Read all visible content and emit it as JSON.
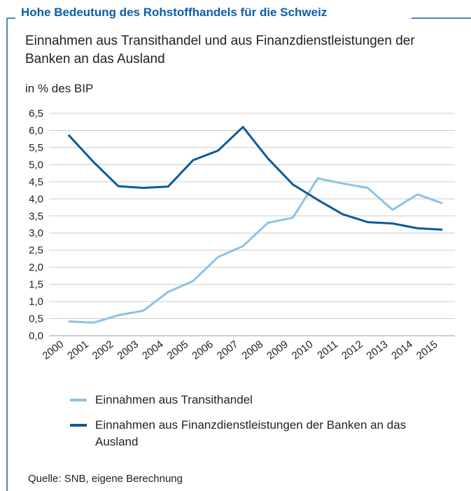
{
  "chart_data": {
    "type": "line",
    "title": "Hohe Bedeutung des Rohstoffhandels für die Schweiz",
    "subtitle": "Einnahmen aus Transithandel und aus Finanzdienstleistungen der Banken an das Ausland",
    "y_label": "in % des BIP",
    "source": "Quelle: SNB, eigene Berechnung",
    "categories": [
      "2000",
      "2001",
      "2002",
      "2003",
      "2004",
      "2005",
      "2006",
      "2007",
      "2008",
      "2009",
      "2010",
      "2011",
      "2012",
      "2013",
      "2014",
      "2015"
    ],
    "series": [
      {
        "name": "Einnahmen aus Transithandel",
        "color": "#8fc1e3",
        "values": [
          0.42,
          0.38,
          0.6,
          0.73,
          1.28,
          1.6,
          2.3,
          2.62,
          3.3,
          3.45,
          4.6,
          4.45,
          4.32,
          3.68,
          4.13,
          3.87
        ]
      },
      {
        "name": "Einnahmen aus Finanzdienstleistungen der Banken an das Ausland",
        "color": "#0a5a9c",
        "values": [
          5.87,
          5.08,
          4.37,
          4.32,
          4.36,
          5.13,
          5.41,
          6.1,
          5.18,
          4.42,
          3.97,
          3.55,
          3.32,
          3.28,
          3.14,
          3.1
        ]
      }
    ],
    "ylim": [
      0,
      6.5
    ],
    "yticks": [
      {
        "value": 0,
        "label": "0,0"
      },
      {
        "value": 0.5,
        "label": "0,5"
      },
      {
        "value": 1,
        "label": "1,0"
      },
      {
        "value": 1.5,
        "label": "1,5"
      },
      {
        "value": 2,
        "label": "2,0"
      },
      {
        "value": 2.5,
        "label": "2,5"
      },
      {
        "value": 3,
        "label": "3,0"
      },
      {
        "value": 3.5,
        "label": "3,5"
      },
      {
        "value": 4,
        "label": "4,0"
      },
      {
        "value": 4.5,
        "label": "4,5"
      },
      {
        "value": 5,
        "label": "5,0"
      },
      {
        "value": 5.5,
        "label": "5,5"
      },
      {
        "value": 6,
        "label": "6,0"
      },
      {
        "value": 6.5,
        "label": "6,5"
      }
    ],
    "grid": true
  }
}
